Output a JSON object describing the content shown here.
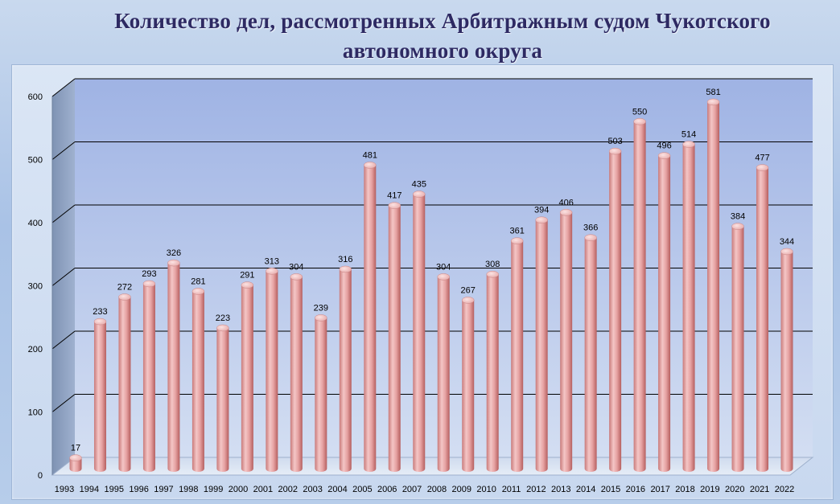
{
  "chart_data": {
    "type": "bar",
    "title_lines": [
      "Количество дел, рассмотренных Арбитражным судом Чукотского",
      "автономного округа"
    ],
    "categories": [
      "1993",
      "1994",
      "1995",
      "1996",
      "1997",
      "1998",
      "1999",
      "2000",
      "2001",
      "2002",
      "2003",
      "2004",
      "2005",
      "2006",
      "2007",
      "2008",
      "2009",
      "2010",
      "2011",
      "2012",
      "2013",
      "2014",
      "2015",
      "2016",
      "2017",
      "2018",
      "2019",
      "2020",
      "2021",
      "2022"
    ],
    "values": [
      17,
      233,
      272,
      293,
      326,
      281,
      223,
      291,
      313,
      304,
      239,
      316,
      481,
      417,
      435,
      304,
      267,
      308,
      361,
      394,
      406,
      366,
      503,
      550,
      496,
      514,
      581,
      384,
      477,
      344
    ],
    "y_ticks": [
      "0",
      "100",
      "200",
      "300",
      "400",
      "500",
      "600"
    ],
    "ylim": [
      0,
      600
    ],
    "grid": true,
    "style": "3d-cylinder",
    "colors": {
      "bar_light": "#f3c2c2",
      "bar_mid": "#e49c9c",
      "bar_dark": "#b86262",
      "bar_top": "#f6d2d2",
      "wall_back": "#a8bde6",
      "wall_side": "#8a9fbf",
      "floor": "#dce6f2",
      "gridline": "#000000"
    }
  }
}
